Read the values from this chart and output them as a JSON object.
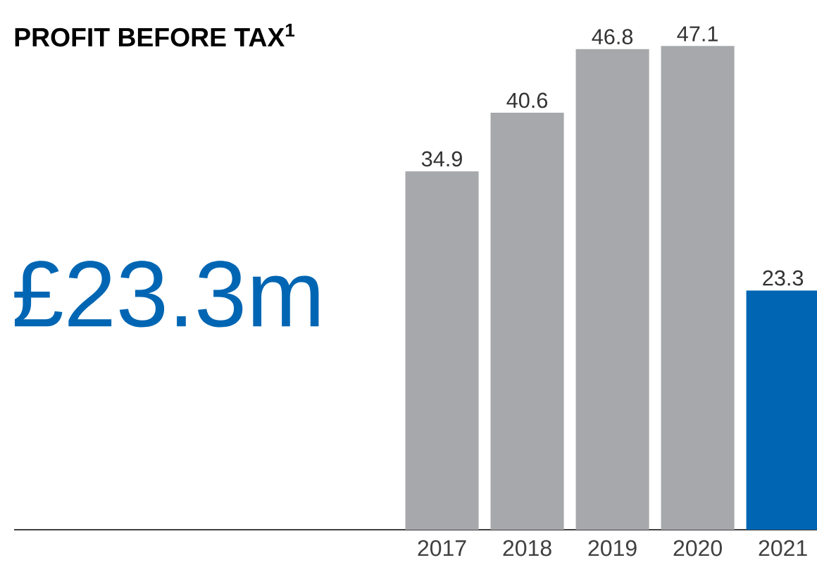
{
  "chart_data": {
    "type": "bar",
    "title": "PROFIT BEFORE TAX$^{1}$",
    "categories": [
      "2017",
      "2018",
      "2019",
      "2020",
      "2021"
    ],
    "values": [
      34.9,
      40.6,
      46.8,
      47.1,
      23.3
    ],
    "colors": [
      "#a7a8ab",
      "#a7a8ab",
      "#a7a8ab",
      "#a7a8ab",
      "#0066b3"
    ],
    "data_labels": true,
    "annotations": [
      "£23.3m"
    ]
  }
}
